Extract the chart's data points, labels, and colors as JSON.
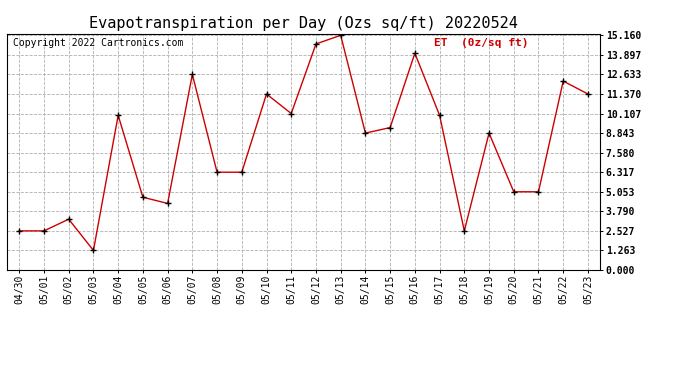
{
  "title": "Evapotranspiration per Day (Ozs sq/ft) 20220524",
  "copyright": "Copyright 2022 Cartronics.com",
  "legend_label": "ET  (0z/sq ft)",
  "x_labels": [
    "04/30",
    "05/01",
    "05/02",
    "05/03",
    "05/04",
    "05/05",
    "05/06",
    "05/07",
    "05/08",
    "05/09",
    "05/10",
    "05/11",
    "05/12",
    "05/13",
    "05/14",
    "05/15",
    "05/16",
    "05/17",
    "05/18",
    "05/19",
    "05/20",
    "05/21",
    "05/22",
    "05/23"
  ],
  "y_values": [
    2.527,
    2.527,
    3.282,
    1.263,
    9.99,
    4.7,
    4.3,
    12.633,
    6.317,
    6.317,
    11.37,
    10.107,
    14.6,
    15.16,
    8.843,
    9.2,
    14.0,
    9.99,
    2.527,
    8.843,
    5.053,
    5.053,
    12.2,
    11.37
  ],
  "y_ticks": [
    0.0,
    1.263,
    2.527,
    3.79,
    5.053,
    6.317,
    7.58,
    8.843,
    10.107,
    11.37,
    12.633,
    13.897,
    15.16
  ],
  "y_min": 0.0,
  "y_max": 15.16,
  "line_color": "#cc0000",
  "marker_color": "#000000",
  "background_color": "#ffffff",
  "grid_color": "#b0b0b0",
  "title_fontsize": 11,
  "copyright_fontsize": 7,
  "legend_fontsize": 8,
  "tick_fontsize": 7,
  "figwidth": 6.9,
  "figheight": 3.75,
  "dpi": 100
}
